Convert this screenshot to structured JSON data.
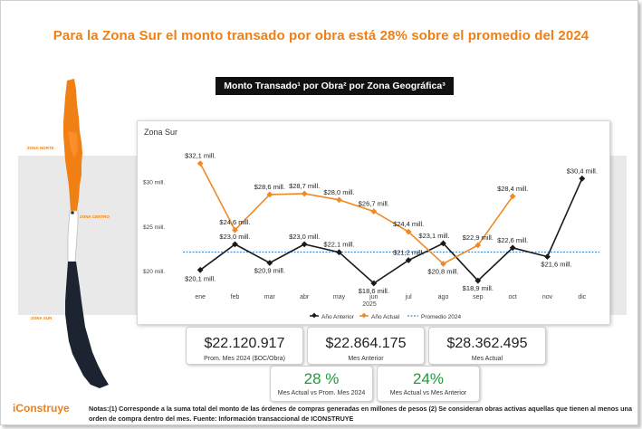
{
  "headline": "Para la Zona Sur el monto transado por obra está  28% sobre el promedio del 2024",
  "banner": "Monto Transado¹ por Obra² por Zona Geográfica³",
  "colors": {
    "accent": "#f07f14",
    "series_prev": "#1a1a1a",
    "series_curr": "#f08a24",
    "avg": "#4a8fd0",
    "positive": "#1f9a3a"
  },
  "map": {
    "zona_norte": "ZONA NORTE",
    "zona_centro": "ZONA CENTRO",
    "zona_sur": "ZONA SUR"
  },
  "chart_data": {
    "type": "line",
    "title": "Zona Sur",
    "categories": [
      "ene",
      "feb",
      "mar",
      "abr",
      "may",
      "jun",
      "jul",
      "ago",
      "sep",
      "oct",
      "nov",
      "dic"
    ],
    "xlabel": "2025",
    "ylabel": "",
    "ylim": [
      18.5,
      34
    ],
    "yticks": [
      20,
      25,
      30
    ],
    "ytick_labels": [
      "$20 mill.",
      "$25 mill.",
      "$30 mill."
    ],
    "grid": false,
    "legend_position": "bottom",
    "series": [
      {
        "name": "Año Anterior",
        "values": [
          20.1,
          23.0,
          20.9,
          23.0,
          22.1,
          18.6,
          21.2,
          23.1,
          18.9,
          22.6,
          21.6,
          30.4
        ],
        "labels": [
          "$20,1 mill.",
          "$23,0 mill.",
          "$20,9 mill.",
          "$23,0 mill.",
          "$22,1 mill.",
          "$18,6 mill.",
          "$21,2 mill.",
          "$23,1 mill.",
          "$18,9 mill.",
          "$22,6 mill.",
          "$21,6 mill.",
          "$30,4 mill."
        ]
      },
      {
        "name": "Año Actual",
        "values": [
          32.1,
          24.6,
          28.6,
          28.7,
          28.0,
          26.7,
          24.4,
          20.8,
          22.9,
          28.4,
          null,
          null
        ],
        "labels": [
          "$32,1 mill.",
          "$24,6 mill.",
          "$28,6 mill.",
          "$28,7 mill.",
          "$28,0 mill.",
          "$26,7 mill.",
          "$24,4 mill.",
          "$20,8 mill.",
          "$22,9 mill.",
          "$28,4 mill.",
          "",
          ""
        ]
      }
    ],
    "reference_line": {
      "name": "Promedio 2024",
      "value": 22.12
    }
  },
  "kpis": [
    {
      "value": "$22.120.917",
      "label": "Prom. Mes 2024 ($OC/Obra)"
    },
    {
      "value": "$22.864.175",
      "label": "Mes Anterior"
    },
    {
      "value": "$28.362.495",
      "label": "Mes Actual"
    }
  ],
  "pcts": [
    {
      "value": "28 %",
      "label": "Mes Actual vs Prom. Mes 2024"
    },
    {
      "value": "24%",
      "label": "Mes Actual vs Mes Anterior"
    }
  ],
  "logo": {
    "mark": "i",
    "text": "Construye"
  },
  "notes": "Notas:(1)  Corresponde a la suma total del monto de las órdenes de compras generadas en millones de pesos (2) Se consideran obras activas aquellas que tienen al menos una orden de compra dentro del mes. Fuente: Información transaccional de ICONSTRUYE"
}
